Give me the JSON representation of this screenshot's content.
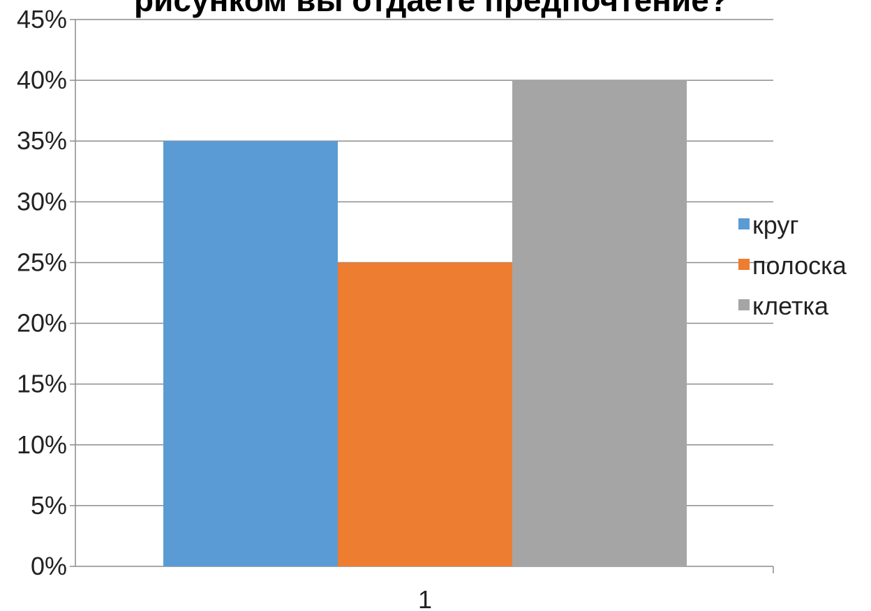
{
  "chart_data": {
    "type": "bar",
    "title": "рисунком вы отдаете предпочтение?",
    "categories": [
      "1"
    ],
    "series": [
      {
        "name": "круг",
        "values": [
          0.35
        ],
        "color": "#5b9bd5"
      },
      {
        "name": "полоска",
        "values": [
          0.25
        ],
        "color": "#ed7d31"
      },
      {
        "name": "клетка",
        "values": [
          0.4
        ],
        "color": "#a5a5a5"
      }
    ],
    "ylim": [
      0,
      0.45
    ],
    "yticks": [
      "0%",
      "5%",
      "10%",
      "15%",
      "20%",
      "25%",
      "30%",
      "35%",
      "40%",
      "45%"
    ],
    "grid": true,
    "legend_position": "right"
  }
}
